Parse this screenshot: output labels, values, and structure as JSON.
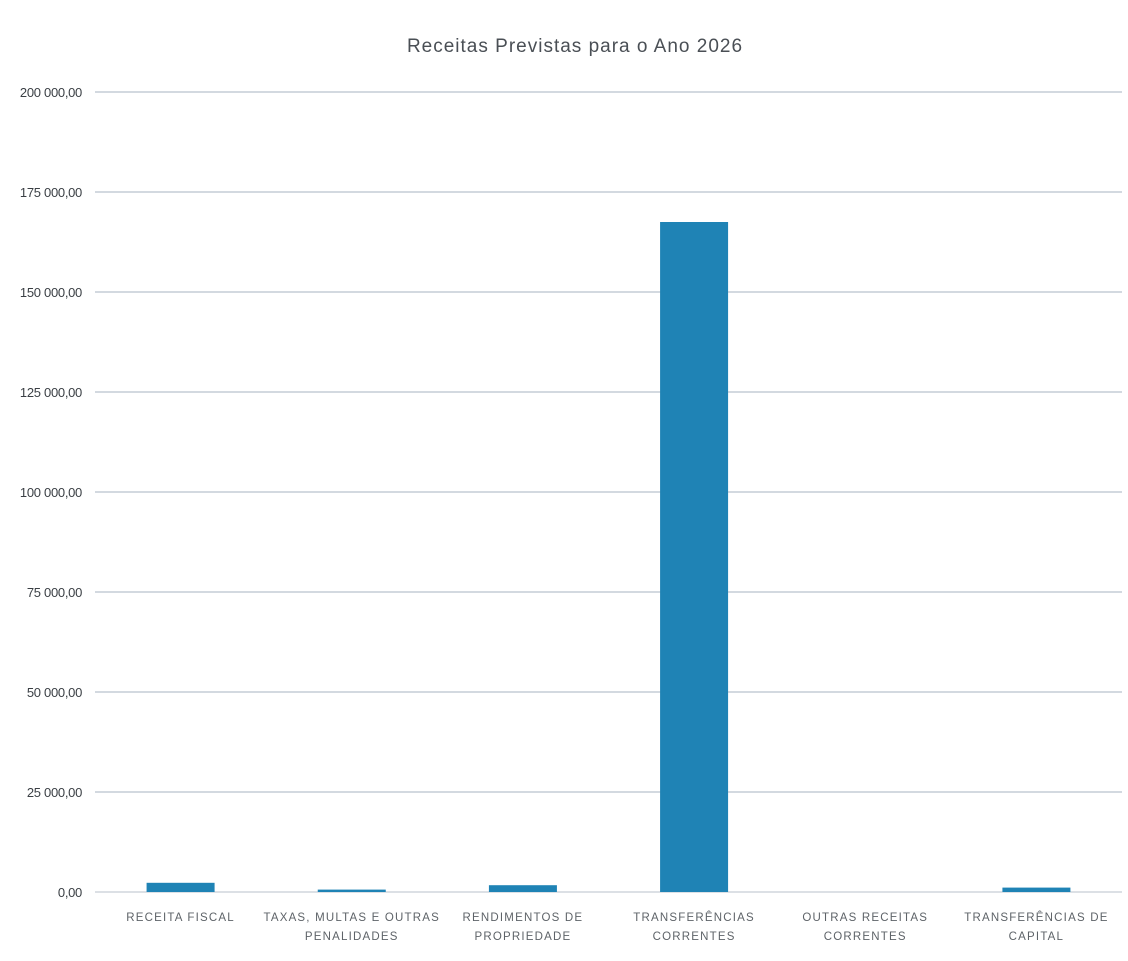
{
  "chart_data": {
    "type": "bar",
    "title": "Receitas Previstas para o Ano 2026",
    "xlabel": "",
    "ylabel": "",
    "categories": [
      [
        "RECEITA FISCAL"
      ],
      [
        "TAXAS, MULTAS E OUTRAS",
        "PENALIDADES"
      ],
      [
        "RENDIMENTOS DE",
        "PROPRIEDADE"
      ],
      [
        "TRANSFERÊNCIAS",
        "CORRENTES"
      ],
      [
        "OUTRAS RECEITAS",
        "CORRENTES"
      ],
      [
        "TRANSFERÊNCIAS DE",
        "CAPITAL"
      ]
    ],
    "values": [
      2300,
      600,
      1700,
      167500,
      0,
      1100
    ],
    "ylim": [
      0,
      200000
    ],
    "yticks": [
      0,
      25000,
      50000,
      75000,
      100000,
      125000,
      150000,
      175000,
      200000
    ],
    "ytick_labels": [
      "0,00",
      "25 000,00",
      "50 000,00",
      "75 000,00",
      "100 000,00",
      "125 000,00",
      "150 000,00",
      "175 000,00",
      "200 000,00"
    ],
    "grid": true,
    "legend": "none",
    "colors": {
      "bar": "#1f83b5",
      "grid": "#a7b3c0",
      "text": "#4a4f55"
    }
  }
}
